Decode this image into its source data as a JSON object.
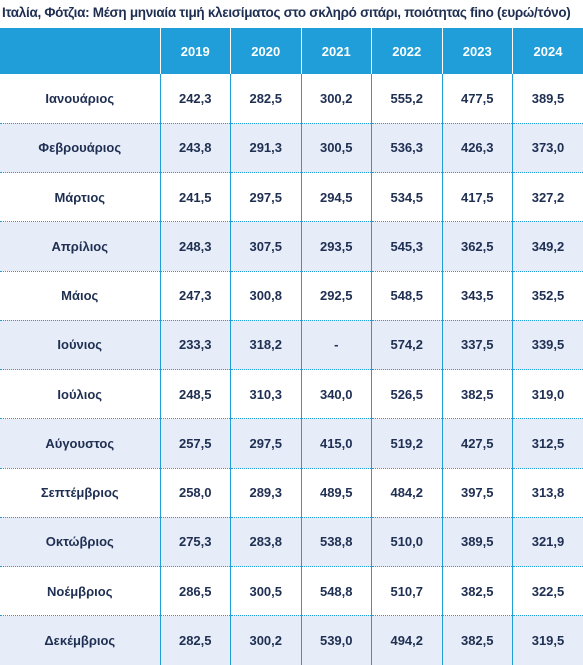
{
  "title": "Ιταλία, Φότζια: Μέση μηνιαία τιμή κλεισίματος στο σκληρό σιτάρι, ποιότητας fino (ευρώ/τόνο)",
  "table": {
    "corner": "",
    "years": [
      "2019",
      "2020",
      "2021",
      "2022",
      "2023",
      "2024"
    ],
    "rows": [
      {
        "month": "Ιανουάριος",
        "values": [
          "242,3",
          "282,5",
          "300,2",
          "555,2",
          "477,5",
          "389,5"
        ]
      },
      {
        "month": "Φεβρουάριος",
        "values": [
          "243,8",
          "291,3",
          "300,5",
          "536,3",
          "426,3",
          "373,0"
        ]
      },
      {
        "month": "Μάρτιος",
        "values": [
          "241,5",
          "297,5",
          "294,5",
          "534,5",
          "417,5",
          "327,2"
        ]
      },
      {
        "month": "Απρίλιος",
        "values": [
          "248,3",
          "307,5",
          "293,5",
          "545,3",
          "362,5",
          "349,2"
        ]
      },
      {
        "month": "Μάιος",
        "values": [
          "247,3",
          "300,8",
          "292,5",
          "548,5",
          "343,5",
          "352,5"
        ]
      },
      {
        "month": "Ιούνιος",
        "values": [
          "233,3",
          "318,2",
          "-",
          "574,2",
          "337,5",
          "339,5"
        ]
      },
      {
        "month": "Ιούλιος",
        "values": [
          "248,5",
          "310,3",
          "340,0",
          "526,5",
          "382,5",
          "319,0"
        ]
      },
      {
        "month": "Αύγουστος",
        "values": [
          "257,5",
          "297,5",
          "415,0",
          "519,2",
          "427,5",
          "312,5"
        ]
      },
      {
        "month": "Σεπτέμβριος",
        "values": [
          "258,0",
          "289,3",
          "489,5",
          "484,2",
          "397,5",
          "313,8"
        ]
      },
      {
        "month": "Οκτώβριος",
        "values": [
          "275,3",
          "283,8",
          "538,8",
          "510,0",
          "389,5",
          "321,9"
        ]
      },
      {
        "month": "Νοέμβριος",
        "values": [
          "286,5",
          "300,5",
          "548,8",
          "510,7",
          "382,5",
          "322,5"
        ]
      },
      {
        "month": "Δεκέμβριος",
        "values": [
          "282,5",
          "300,2",
          "539,0",
          "494,2",
          "382,5",
          "319,5"
        ]
      }
    ]
  },
  "colors": {
    "header_bg": "#1f9ed9",
    "header_text": "#ffffff",
    "text": "#1f2f52",
    "stripe": "#e6ecf8"
  }
}
